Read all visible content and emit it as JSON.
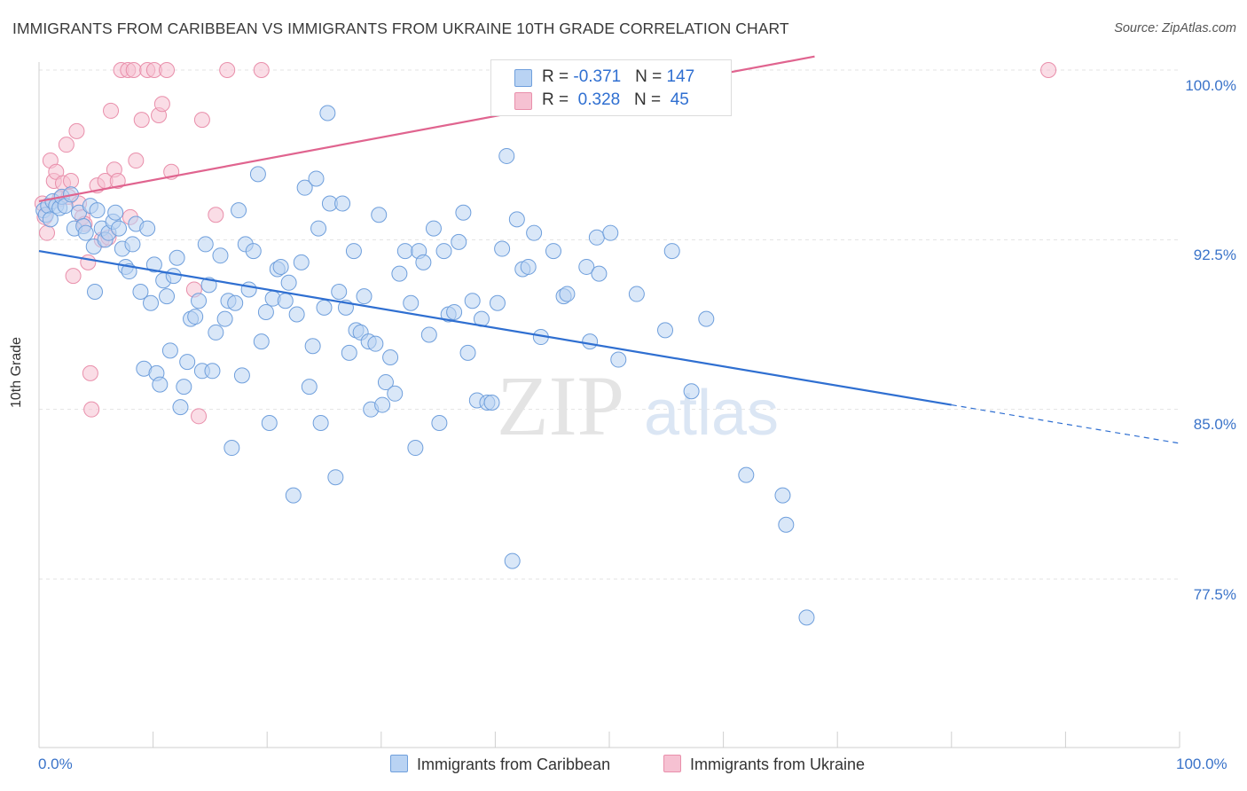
{
  "title": "IMMIGRANTS FROM CARIBBEAN VS IMMIGRANTS FROM UKRAINE 10TH GRADE CORRELATION CHART",
  "source": "Source: ZipAtlas.com",
  "watermark": {
    "zip": "ZIP",
    "atlas": "atlas"
  },
  "colors": {
    "caribbean_fill": "#b9d3f3",
    "caribbean_stroke": "#6f9fdc",
    "caribbean_line": "#2f6fd1",
    "ukraine_fill": "#f6c1d2",
    "ukraine_stroke": "#e98fab",
    "ukraine_line": "#e0648f",
    "axis_label": "#3a73c9"
  },
  "legend_top": {
    "rows": [
      {
        "r_label": "R = ",
        "r_value": "-0.371",
        "n_label": "N = ",
        "n_value": "147"
      },
      {
        "r_label": "R = ",
        "r_value": " 0.328",
        "n_label": "N = ",
        "n_value": " 45"
      }
    ]
  },
  "legend_bottom": [
    "Immigrants from Caribbean",
    "Immigrants from Ukraine"
  ],
  "chart_data": {
    "type": "scatter",
    "title": "IMMIGRANTS FROM CARIBBEAN VS IMMIGRANTS FROM UKRAINE 10TH GRADE CORRELATION CHART",
    "xlabel": "",
    "ylabel": "10th Grade",
    "xlim": [
      0,
      100
    ],
    "ylim": [
      70.0,
      100.6
    ],
    "x_tick_labels": [
      "0.0%",
      "100.0%"
    ],
    "y_ticks": [
      77.5,
      85.0,
      92.5,
      100.0
    ],
    "y_tick_labels": [
      "77.5%",
      "85.0%",
      "92.5%",
      "100.0%"
    ],
    "grid": true,
    "legend_position": "bottom",
    "series": [
      {
        "name": "Immigrants from Caribbean",
        "r": -0.371,
        "n": 147,
        "trend": {
          "x": [
            0,
            80,
            100
          ],
          "y": [
            92.0,
            85.2,
            83.5
          ],
          "solid_to_x": 80
        },
        "points": [
          [
            0.4,
            93.8
          ],
          [
            0.6,
            93.6
          ],
          [
            0.8,
            94.0
          ],
          [
            1.0,
            93.4
          ],
          [
            1.2,
            94.2
          ],
          [
            1.5,
            94.0
          ],
          [
            1.8,
            93.9
          ],
          [
            2.0,
            94.4
          ],
          [
            2.3,
            94.0
          ],
          [
            2.8,
            94.5
          ],
          [
            3.1,
            93.0
          ],
          [
            3.5,
            93.7
          ],
          [
            3.9,
            93.1
          ],
          [
            4.1,
            92.8
          ],
          [
            4.5,
            94.0
          ],
          [
            4.8,
            92.2
          ],
          [
            5.1,
            93.8
          ],
          [
            4.9,
            90.2
          ],
          [
            5.5,
            93.0
          ],
          [
            5.8,
            92.5
          ],
          [
            6.1,
            92.8
          ],
          [
            6.5,
            93.3
          ],
          [
            6.7,
            93.7
          ],
          [
            7.0,
            93.0
          ],
          [
            7.3,
            92.1
          ],
          [
            7.6,
            91.3
          ],
          [
            7.9,
            91.1
          ],
          [
            8.2,
            92.3
          ],
          [
            8.5,
            93.2
          ],
          [
            8.9,
            90.2
          ],
          [
            9.2,
            86.8
          ],
          [
            9.5,
            93.0
          ],
          [
            9.8,
            89.7
          ],
          [
            10.1,
            91.4
          ],
          [
            10.3,
            86.6
          ],
          [
            10.6,
            86.1
          ],
          [
            10.9,
            90.7
          ],
          [
            11.2,
            90.0
          ],
          [
            11.5,
            87.6
          ],
          [
            11.8,
            90.9
          ],
          [
            12.1,
            91.7
          ],
          [
            12.4,
            85.1
          ],
          [
            12.7,
            86.0
          ],
          [
            13.0,
            87.1
          ],
          [
            13.3,
            89.0
          ],
          [
            13.7,
            89.1
          ],
          [
            14.0,
            89.8
          ],
          [
            14.3,
            86.7
          ],
          [
            14.6,
            92.3
          ],
          [
            14.9,
            90.5
          ],
          [
            15.2,
            86.7
          ],
          [
            15.5,
            88.4
          ],
          [
            15.9,
            91.8
          ],
          [
            16.3,
            89.0
          ],
          [
            16.6,
            89.8
          ],
          [
            16.9,
            83.3
          ],
          [
            17.2,
            89.7
          ],
          [
            17.5,
            93.8
          ],
          [
            17.8,
            86.5
          ],
          [
            18.1,
            92.3
          ],
          [
            18.4,
            90.3
          ],
          [
            18.8,
            92.0
          ],
          [
            19.2,
            95.4
          ],
          [
            19.5,
            88.0
          ],
          [
            19.9,
            89.3
          ],
          [
            20.2,
            84.4
          ],
          [
            20.5,
            89.9
          ],
          [
            20.9,
            91.2
          ],
          [
            21.2,
            91.3
          ],
          [
            21.6,
            89.8
          ],
          [
            21.9,
            90.6
          ],
          [
            22.3,
            81.2
          ],
          [
            22.6,
            89.2
          ],
          [
            23.0,
            91.5
          ],
          [
            23.3,
            94.8
          ],
          [
            23.7,
            86.0
          ],
          [
            24.0,
            87.8
          ],
          [
            24.3,
            95.2
          ],
          [
            24.5,
            93.0
          ],
          [
            24.7,
            84.4
          ],
          [
            25.0,
            89.5
          ],
          [
            25.3,
            98.1
          ],
          [
            25.5,
            94.1
          ],
          [
            26.0,
            82.0
          ],
          [
            26.3,
            90.2
          ],
          [
            26.6,
            94.1
          ],
          [
            26.9,
            89.5
          ],
          [
            27.2,
            87.5
          ],
          [
            27.6,
            92.0
          ],
          [
            27.8,
            88.5
          ],
          [
            28.2,
            88.4
          ],
          [
            28.5,
            90.0
          ],
          [
            28.9,
            88.0
          ],
          [
            29.1,
            85.0
          ],
          [
            29.5,
            87.9
          ],
          [
            29.8,
            93.6
          ],
          [
            30.1,
            85.2
          ],
          [
            30.4,
            86.2
          ],
          [
            30.8,
            87.3
          ],
          [
            31.2,
            85.7
          ],
          [
            31.6,
            91.0
          ],
          [
            32.1,
            92.0
          ],
          [
            32.6,
            89.7
          ],
          [
            33.0,
            83.3
          ],
          [
            33.3,
            92.0
          ],
          [
            33.7,
            91.5
          ],
          [
            34.2,
            88.3
          ],
          [
            34.6,
            93.0
          ],
          [
            35.1,
            84.4
          ],
          [
            35.5,
            92.0
          ],
          [
            35.9,
            89.2
          ],
          [
            36.4,
            89.3
          ],
          [
            36.8,
            92.4
          ],
          [
            37.2,
            93.7
          ],
          [
            37.6,
            87.5
          ],
          [
            38.0,
            89.8
          ],
          [
            38.4,
            85.4
          ],
          [
            38.8,
            89.0
          ],
          [
            39.3,
            85.3
          ],
          [
            39.7,
            85.3
          ],
          [
            40.2,
            89.7
          ],
          [
            40.6,
            92.1
          ],
          [
            41.0,
            96.2
          ],
          [
            41.5,
            78.3
          ],
          [
            41.9,
            93.4
          ],
          [
            42.4,
            91.2
          ],
          [
            42.9,
            91.3
          ],
          [
            43.4,
            92.8
          ],
          [
            44.0,
            88.2
          ],
          [
            45.1,
            92.0
          ],
          [
            46.0,
            90.0
          ],
          [
            46.3,
            90.1
          ],
          [
            48.0,
            91.3
          ],
          [
            48.3,
            88.0
          ],
          [
            48.9,
            92.6
          ],
          [
            49.1,
            91.0
          ],
          [
            50.1,
            92.8
          ],
          [
            50.8,
            87.2
          ],
          [
            52.4,
            90.1
          ],
          [
            54.9,
            88.5
          ],
          [
            55.5,
            92.0
          ],
          [
            57.2,
            85.8
          ],
          [
            58.5,
            89.0
          ],
          [
            62.0,
            82.1
          ],
          [
            65.2,
            81.2
          ],
          [
            65.5,
            79.9
          ],
          [
            67.3,
            75.8
          ]
        ]
      },
      {
        "name": "Immigrants from Ukraine",
        "r": 0.328,
        "n": 45,
        "trend": {
          "x": [
            0,
            68
          ],
          "y": [
            94.2,
            100.6
          ]
        },
        "points": [
          [
            0.3,
            94.1
          ],
          [
            0.5,
            93.5
          ],
          [
            0.7,
            92.8
          ],
          [
            1.0,
            96.0
          ],
          [
            1.3,
            95.1
          ],
          [
            1.5,
            95.5
          ],
          [
            1.8,
            94.3
          ],
          [
            2.1,
            95.0
          ],
          [
            2.4,
            96.7
          ],
          [
            2.6,
            94.4
          ],
          [
            2.8,
            95.1
          ],
          [
            3.0,
            90.9
          ],
          [
            3.3,
            97.3
          ],
          [
            3.5,
            94.1
          ],
          [
            3.8,
            93.5
          ],
          [
            4.0,
            93.2
          ],
          [
            4.3,
            91.5
          ],
          [
            4.5,
            86.6
          ],
          [
            4.6,
            85.0
          ],
          [
            5.1,
            94.9
          ],
          [
            5.5,
            92.5
          ],
          [
            5.8,
            95.1
          ],
          [
            6.1,
            92.6
          ],
          [
            6.3,
            98.2
          ],
          [
            6.6,
            95.6
          ],
          [
            6.9,
            95.1
          ],
          [
            7.2,
            100.0
          ],
          [
            7.8,
            100.0
          ],
          [
            8.0,
            93.5
          ],
          [
            8.3,
            100.0
          ],
          [
            8.5,
            96.0
          ],
          [
            9.0,
            97.8
          ],
          [
            9.5,
            100.0
          ],
          [
            10.1,
            100.0
          ],
          [
            10.5,
            98.0
          ],
          [
            10.8,
            98.5
          ],
          [
            11.2,
            100.0
          ],
          [
            11.6,
            95.5
          ],
          [
            13.6,
            90.3
          ],
          [
            14.0,
            84.7
          ],
          [
            14.3,
            97.8
          ],
          [
            15.5,
            93.6
          ],
          [
            16.5,
            100.0
          ],
          [
            19.5,
            100.0
          ],
          [
            88.5,
            100.0
          ]
        ]
      }
    ]
  }
}
